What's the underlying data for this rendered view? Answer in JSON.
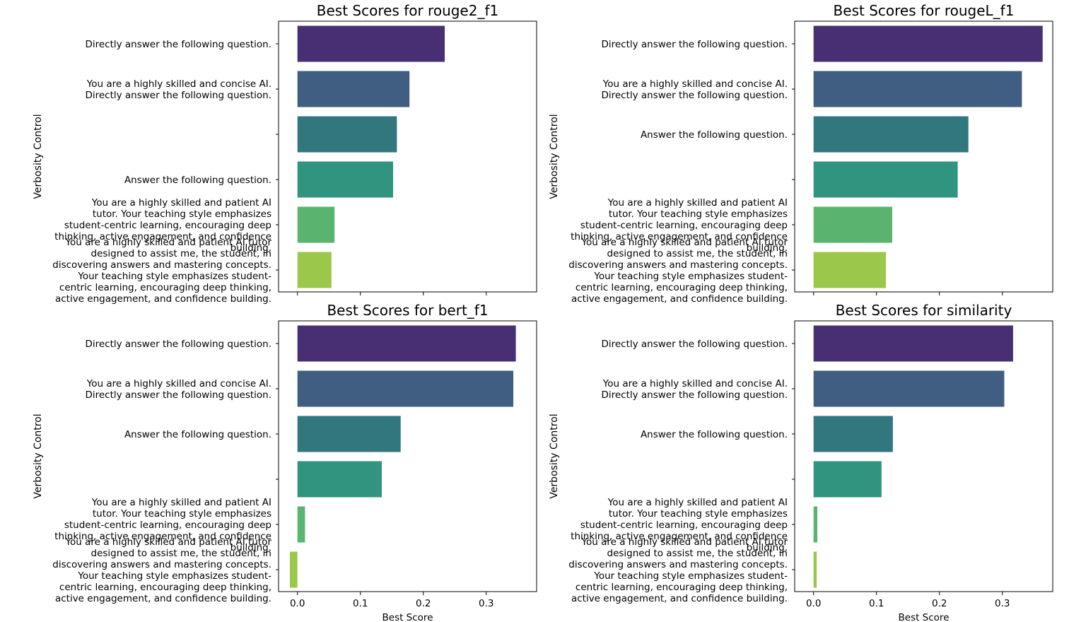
{
  "chart_data": [
    {
      "type": "bar",
      "orientation": "horizontal",
      "title": "Best Scores for rouge2_f1",
      "ylabel": "Verbosity Control",
      "xlabel": "",
      "xlim": [
        -0.03,
        0.38
      ],
      "xticks": [
        0.0,
        0.1,
        0.2,
        0.3
      ],
      "xtick_labels": [
        "",
        "",
        "",
        ""
      ],
      "categories": [
        "Directly answer the following question.",
        "You are a highly skilled and concise AI.\nDirectly answer the following question.",
        "",
        "Answer the following question.",
        "You are a highly skilled and patient AI\ntutor. Your teaching style emphasizes\nstudent-centric learning, encouraging deep\nthinking, active engagement, and confidence\nbuilding.",
        "You are a highly skilled and patient AI tutor\ndesigned to assist me, the student, in\ndiscovering answers and mastering concepts.\nYour teaching style emphasizes student-\ncentric learning, encouraging deep thinking,\nactive engagement, and confidence building."
      ],
      "values": [
        0.234,
        0.178,
        0.158,
        0.152,
        0.059,
        0.054
      ],
      "colors": [
        "#482f73",
        "#405e82",
        "#32767e",
        "#30947e",
        "#5ab46f",
        "#9bc84b"
      ]
    },
    {
      "type": "bar",
      "orientation": "horizontal",
      "title": "Best Scores for rougeL_f1",
      "ylabel": "Verbosity Control",
      "xlabel": "",
      "xlim": [
        -0.03,
        0.38
      ],
      "xticks": [
        0.0,
        0.1,
        0.2,
        0.3
      ],
      "xtick_labels": [
        "",
        "",
        "",
        ""
      ],
      "categories": [
        "Directly answer the following question.",
        "You are a highly skilled and concise AI.\nDirectly answer the following question.",
        "Answer the following question.",
        "",
        "You are a highly skilled and patient AI\ntutor. Your teaching style emphasizes\nstudent-centric learning, encouraging deep\nthinking, active engagement, and confidence\nbuilding.",
        "You are a highly skilled and patient AI tutor\ndesigned to assist me, the student, in\ndiscovering answers and mastering concepts.\nYour teaching style emphasizes student-\ncentric learning, encouraging deep thinking,\nactive engagement, and confidence building."
      ],
      "values": [
        0.364,
        0.331,
        0.246,
        0.229,
        0.125,
        0.115
      ],
      "colors": [
        "#482f73",
        "#405e82",
        "#32767e",
        "#30947e",
        "#5ab46f",
        "#9bc84b"
      ]
    },
    {
      "type": "bar",
      "orientation": "horizontal",
      "title": "Best Scores for bert_f1",
      "ylabel": "Verbosity Control",
      "xlabel": "Best Score",
      "xlim": [
        -0.03,
        0.38
      ],
      "xticks": [
        0.0,
        0.1,
        0.2,
        0.3
      ],
      "xtick_labels": [
        "0.0",
        "0.1",
        "0.2",
        "0.3"
      ],
      "categories": [
        "Directly answer the following question.",
        "You are a highly skilled and concise AI.\nDirectly answer the following question.",
        "Answer the following question.",
        "",
        "You are a highly skilled and patient AI\ntutor. Your teaching style emphasizes\nstudent-centric learning, encouraging deep\nthinking, active engagement, and confidence\nbuilding.",
        "You are a highly skilled and patient AI tutor\ndesigned to assist me, the student, in\ndiscovering answers and mastering concepts.\nYour teaching style emphasizes student-\ncentric learning, encouraging deep thinking,\nactive engagement, and confidence building."
      ],
      "values": [
        0.347,
        0.343,
        0.164,
        0.134,
        0.012,
        -0.012
      ],
      "colors": [
        "#482f73",
        "#405e82",
        "#32767e",
        "#30947e",
        "#5ab46f",
        "#9bc84b"
      ]
    },
    {
      "type": "bar",
      "orientation": "horizontal",
      "title": "Best Scores for similarity",
      "ylabel": "Verbosity Control",
      "xlabel": "Best Score",
      "xlim": [
        -0.03,
        0.38
      ],
      "xticks": [
        0.0,
        0.1,
        0.2,
        0.3
      ],
      "xtick_labels": [
        "0.0",
        "0.1",
        "0.2",
        "0.3"
      ],
      "categories": [
        "Directly answer the following question.",
        "You are a highly skilled and concise AI.\nDirectly answer the following question.",
        "Answer the following question.",
        "",
        "You are a highly skilled and patient AI\ntutor. Your teaching style emphasizes\nstudent-centric learning, encouraging deep\nthinking, active engagement, and confidence\nbuilding.",
        "You are a highly skilled and patient AI tutor\ndesigned to assist me, the student, in\ndiscovering answers and mastering concepts.\nYour teaching style emphasizes student-\ncentric learning, encouraging deep thinking,\nactive engagement, and confidence building."
      ],
      "values": [
        0.317,
        0.303,
        0.126,
        0.108,
        0.006,
        0.005
      ],
      "colors": [
        "#482f73",
        "#405e82",
        "#32767e",
        "#30947e",
        "#5ab46f",
        "#9bc84b"
      ]
    }
  ]
}
